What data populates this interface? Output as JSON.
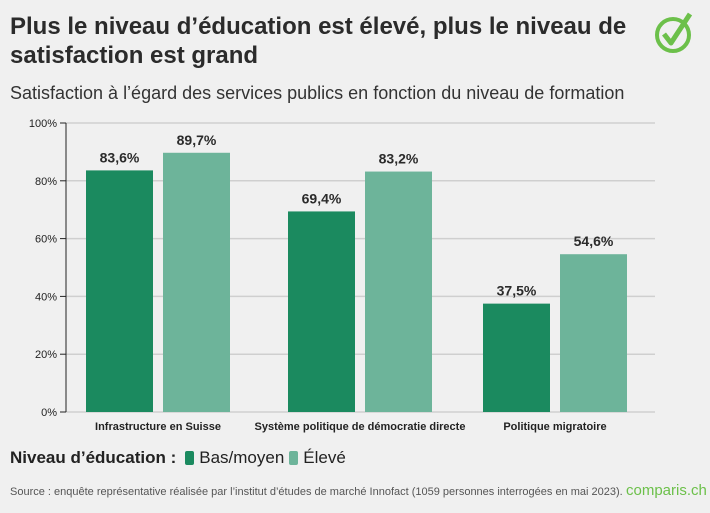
{
  "title": "Plus le niveau d’éducation est élevé, plus le niveau de satisfaction est grand",
  "subtitle": "Satisfaction à l’égard des services publics en fonction du niveau de formation",
  "legend_title": "Niveau d’éducation :",
  "source": "Source : enquête représentative réalisée par l’institut d’études de marché Innofact (1059 personnes interrogées en mai 2023).",
  "brand": "comparis.ch",
  "icons": {
    "logo": "check-circle-icon"
  },
  "colors": {
    "bas": "#1b8a5f",
    "eleve": "#6db49a",
    "brand": "#6cc04a"
  },
  "chart_data": {
    "type": "bar",
    "categories": [
      "Infrastructure en Suisse",
      "Système politique de démocratie directe",
      "Politique migratoire"
    ],
    "series": [
      {
        "name": "Bas/moyen",
        "values": [
          83.6,
          69.4,
          37.5
        ],
        "labels": [
          "83,6%",
          "69,4%",
          "37,5%"
        ]
      },
      {
        "name": "Élevé",
        "values": [
          89.7,
          83.2,
          54.6
        ],
        "labels": [
          "89,7%",
          "83,2%",
          "54,6%"
        ]
      }
    ],
    "ylim": [
      0,
      100
    ],
    "yticks": [
      0,
      20,
      40,
      60,
      80,
      100
    ],
    "ytick_labels": [
      "0%",
      "20%",
      "40%",
      "60%",
      "80%",
      "100%"
    ],
    "grid": true,
    "legend_placement": "bottom-left"
  }
}
